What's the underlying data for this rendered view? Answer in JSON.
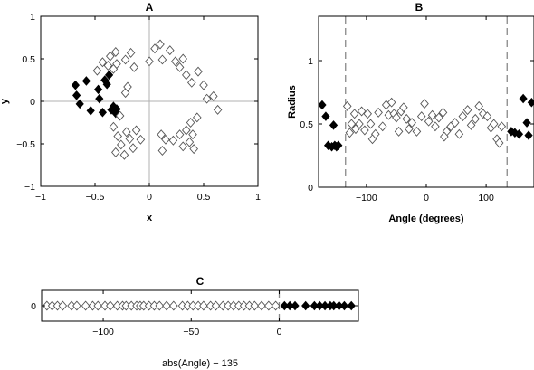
{
  "chart_data": [
    {
      "type": "scatter",
      "title": "A",
      "xlabel": "x",
      "ylabel": "y",
      "xlim": [
        -1,
        1
      ],
      "ylim": [
        -1,
        1
      ],
      "xticks": [
        -1,
        -0.5,
        0,
        0.5,
        1
      ],
      "yticks": [
        -1,
        -0.5,
        0,
        0.5,
        1
      ],
      "xtick_labels": [
        "−1",
        "−0.5",
        "0",
        "0.5",
        "1"
      ],
      "ytick_labels": [
        "−1",
        "−0.5",
        "0",
        "0.5",
        "1"
      ],
      "reference_lines": {
        "x": 0,
        "y": 0
      },
      "series": [
        {
          "marker": "filled-diamond",
          "points": [
            [
              -0.68,
              0.19
            ],
            [
              -0.67,
              0.07
            ],
            [
              -0.64,
              -0.03
            ],
            [
              -0.58,
              0.24
            ],
            [
              -0.54,
              -0.11
            ],
            [
              -0.47,
              0.14
            ],
            [
              -0.46,
              0.03
            ],
            [
              -0.43,
              -0.13
            ],
            [
              -0.41,
              0.25
            ],
            [
              -0.39,
              0.2
            ],
            [
              -0.37,
              0.31
            ],
            [
              -0.35,
              -0.1
            ],
            [
              -0.33,
              -0.06
            ],
            [
              -0.31,
              -0.14
            ],
            [
              -0.3,
              -0.09
            ]
          ]
        },
        {
          "marker": "open-diamond",
          "points": [
            [
              -0.48,
              0.36
            ],
            [
              -0.43,
              0.46
            ],
            [
              -0.38,
              0.42
            ],
            [
              -0.36,
              0.53
            ],
            [
              -0.33,
              0.38
            ],
            [
              -0.3,
              0.44
            ],
            [
              -0.31,
              0.58
            ],
            [
              -0.22,
              0.49
            ],
            [
              -0.17,
              0.57
            ],
            [
              -0.14,
              0.4
            ],
            [
              0.0,
              0.47
            ],
            [
              0.05,
              0.62
            ],
            [
              0.1,
              0.67
            ],
            [
              0.12,
              0.49
            ],
            [
              0.19,
              0.6
            ],
            [
              0.24,
              0.47
            ],
            [
              0.28,
              0.4
            ],
            [
              0.31,
              0.5
            ],
            [
              0.34,
              0.31
            ],
            [
              0.39,
              0.22
            ],
            [
              0.45,
              0.35
            ],
            [
              0.5,
              0.19
            ],
            [
              0.53,
              0.03
            ],
            [
              0.59,
              0.06
            ],
            [
              0.63,
              -0.1
            ],
            [
              0.44,
              -0.19
            ],
            [
              0.38,
              -0.25
            ],
            [
              0.34,
              -0.34
            ],
            [
              0.4,
              -0.39
            ],
            [
              0.37,
              -0.48
            ],
            [
              0.41,
              -0.56
            ],
            [
              0.31,
              -0.53
            ],
            [
              0.28,
              -0.39
            ],
            [
              0.22,
              -0.46
            ],
            [
              0.15,
              -0.45
            ],
            [
              0.12,
              -0.58
            ],
            [
              0.11,
              -0.39
            ],
            [
              -0.08,
              -0.45
            ],
            [
              -0.12,
              -0.34
            ],
            [
              -0.15,
              -0.55
            ],
            [
              -0.18,
              -0.44
            ],
            [
              -0.21,
              -0.36
            ],
            [
              -0.23,
              -0.63
            ],
            [
              -0.26,
              -0.51
            ],
            [
              -0.29,
              -0.41
            ],
            [
              -0.33,
              -0.3
            ],
            [
              -0.31,
              -0.6
            ],
            [
              -0.27,
              -0.17
            ],
            [
              -0.22,
              0.1
            ],
            [
              -0.2,
              0.17
            ]
          ]
        }
      ]
    },
    {
      "type": "scatter",
      "title": "B",
      "xlabel": "Angle (degrees)",
      "ylabel": "Radius",
      "xlim": [
        -180,
        180
      ],
      "ylim": [
        0,
        1.35
      ],
      "xticks": [
        -100,
        0,
        100
      ],
      "yticks": [
        0,
        0.5,
        1
      ],
      "xtick_labels": [
        "−100",
        "0",
        "100"
      ],
      "ytick_labels": [
        "0",
        "0.5",
        "1"
      ],
      "vlines": [
        -135,
        135
      ],
      "series": [
        {
          "marker": "filled-diamond",
          "points": [
            [
              -174,
              0.65
            ],
            [
              -168,
              0.56
            ],
            [
              -164,
              0.33
            ],
            [
              -158,
              0.32
            ],
            [
              -155,
              0.49
            ],
            [
              -153,
              0.33
            ],
            [
              -150,
              0.32
            ],
            [
              -147,
              0.33
            ],
            [
              142,
              0.44
            ],
            [
              148,
              0.43
            ],
            [
              155,
              0.42
            ],
            [
              162,
              0.7
            ],
            [
              168,
              0.51
            ],
            [
              171,
              0.41
            ],
            [
              176,
              0.67
            ]
          ]
        },
        {
          "marker": "open-diamond",
          "points": [
            [
              -128,
              0.43
            ],
            [
              -120,
              0.58
            ],
            [
              -112,
              0.5
            ],
            [
              -108,
              0.6
            ],
            [
              -103,
              0.45
            ],
            [
              -98,
              0.58
            ],
            [
              -93,
              0.5
            ],
            [
              -85,
              0.42
            ],
            [
              -80,
              0.59
            ],
            [
              -73,
              0.48
            ],
            [
              -67,
              0.65
            ],
            [
              -63,
              0.57
            ],
            [
              -58,
              0.67
            ],
            [
              -54,
              0.58
            ],
            [
              -46,
              0.44
            ],
            [
              -42,
              0.6
            ],
            [
              -38,
              0.63
            ],
            [
              -33,
              0.54
            ],
            [
              -29,
              0.46
            ],
            [
              -24,
              0.51
            ],
            [
              -16,
              0.44
            ],
            [
              -8,
              0.56
            ],
            [
              -3,
              0.66
            ],
            [
              4,
              0.52
            ],
            [
              10,
              0.57
            ],
            [
              15,
              0.48
            ],
            [
              21,
              0.55
            ],
            [
              28,
              0.59
            ],
            [
              34,
              0.44
            ],
            [
              41,
              0.48
            ],
            [
              48,
              0.51
            ],
            [
              55,
              0.42
            ],
            [
              61,
              0.56
            ],
            [
              69,
              0.61
            ],
            [
              75,
              0.49
            ],
            [
              82,
              0.54
            ],
            [
              88,
              0.64
            ],
            [
              95,
              0.58
            ],
            [
              102,
              0.56
            ],
            [
              108,
              0.47
            ],
            [
              113,
              0.5
            ],
            [
              118,
              0.38
            ],
            [
              122,
              0.35
            ],
            [
              126,
              0.48
            ],
            [
              -132,
              0.64
            ],
            [
              -125,
              0.5
            ],
            [
              -118,
              0.46
            ],
            [
              -90,
              0.38
            ],
            [
              -50,
              0.55
            ],
            [
              30,
              0.4
            ]
          ]
        }
      ]
    },
    {
      "type": "scatter",
      "title": "C",
      "xlabel": "abs(Angle) − 135",
      "xlim": [
        -135,
        45
      ],
      "xticks": [
        -100,
        -50,
        0
      ],
      "xtick_labels": [
        "−100",
        "−50",
        "0"
      ],
      "yticks": [
        0
      ],
      "ytick_labels": [
        "0"
      ],
      "vlines": [
        0
      ],
      "series": [
        {
          "marker": "filled-diamond",
          "points": [
            [
              3,
              0
            ],
            [
              6,
              0
            ],
            [
              9,
              0
            ],
            [
              15,
              0
            ],
            [
              20,
              0
            ],
            [
              23,
              0
            ],
            [
              26,
              0
            ],
            [
              29,
              0
            ],
            [
              31,
              0
            ],
            [
              34,
              0
            ],
            [
              37,
              0
            ],
            [
              41,
              0
            ]
          ]
        },
        {
          "marker": "open-diamond",
          "points": [
            [
              -132,
              0
            ],
            [
              -129,
              0
            ],
            [
              -126,
              0
            ],
            [
              -123,
              0
            ],
            [
              -118,
              0
            ],
            [
              -115,
              0
            ],
            [
              -110,
              0
            ],
            [
              -106,
              0
            ],
            [
              -103,
              0
            ],
            [
              -99,
              0
            ],
            [
              -96,
              0
            ],
            [
              -92,
              0
            ],
            [
              -89,
              0
            ],
            [
              -87,
              0
            ],
            [
              -84,
              0
            ],
            [
              -81,
              0
            ],
            [
              -79,
              0
            ],
            [
              -77,
              0
            ],
            [
              -74,
              0
            ],
            [
              -71,
              0
            ],
            [
              -68,
              0
            ],
            [
              -64,
              0
            ],
            [
              -60,
              0
            ],
            [
              -55,
              0
            ],
            [
              -52,
              0
            ],
            [
              -49,
              0
            ],
            [
              -46,
              0
            ],
            [
              -43,
              0
            ],
            [
              -39,
              0
            ],
            [
              -36,
              0
            ],
            [
              -32,
              0
            ],
            [
              -29,
              0
            ],
            [
              -26,
              0
            ],
            [
              -23,
              0
            ],
            [
              -20,
              0
            ],
            [
              -17,
              0
            ],
            [
              -14,
              0
            ],
            [
              -10,
              0
            ],
            [
              -6,
              0
            ],
            [
              -2,
              0
            ]
          ]
        }
      ]
    }
  ]
}
